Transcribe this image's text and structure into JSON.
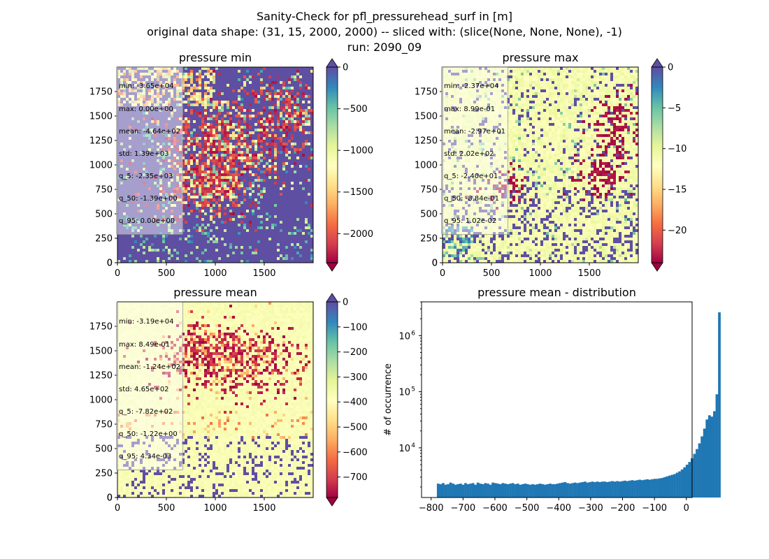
{
  "figure": {
    "title_lines": [
      "Sanity-Check for pfl_pressurehead_surf in [m]",
      "original data shape: (31, 15, 2000, 2000) -- sliced with: (slice(None, None, None), -1)",
      "run: 2090_09"
    ]
  },
  "colormap": {
    "name": "Spectral",
    "stops": [
      "#9e0142",
      "#d53e4f",
      "#f46d43",
      "#fdae61",
      "#fee08b",
      "#ffffbf",
      "#e6f598",
      "#abdda4",
      "#66c2a5",
      "#3288bd",
      "#5e4fa2"
    ]
  },
  "chart_data": [
    {
      "type": "heatmap",
      "title": "pressure min",
      "xlim": [
        0,
        2000
      ],
      "ylim": [
        0,
        2000
      ],
      "xticks": [
        0,
        500,
        1000,
        1500
      ],
      "yticks": [
        0,
        250,
        500,
        750,
        1000,
        1250,
        1500,
        1750
      ],
      "colorbar": {
        "vmin": -2350,
        "vmax": 0,
        "ticks": [
          0,
          -500,
          -1000,
          -1500,
          -2000
        ],
        "extend": "both"
      },
      "stats": [
        "min: -3.65e+04",
        "max: 0.00e+00",
        "mean: -4.64e+02",
        "std: 1.39e+03",
        "q_5: -2.35e+03",
        "q_50: -1.39e+00",
        "q_95: 0.00e+00"
      ]
    },
    {
      "type": "heatmap",
      "title": "pressure max",
      "xlim": [
        0,
        2000
      ],
      "ylim": [
        0,
        2000
      ],
      "xticks": [
        0,
        500,
        1000,
        1500
      ],
      "yticks": [
        0,
        250,
        500,
        750,
        1000,
        1250,
        1500,
        1750
      ],
      "colorbar": {
        "vmin": -24,
        "vmax": 0,
        "ticks": [
          0,
          -5,
          -10,
          -15,
          -20
        ],
        "extend": "both"
      },
      "stats": [
        "min: -2.37e+04",
        "max: 8.99e-01",
        "mean: -2.97e+01",
        "std: 2.02e+02",
        "q_5: -2.40e+01",
        "q_50: -8.84e-01",
        "q_95: 1.02e-02"
      ]
    },
    {
      "type": "heatmap",
      "title": "pressure mean",
      "xlim": [
        0,
        2000
      ],
      "ylim": [
        0,
        2000
      ],
      "xticks": [
        0,
        500,
        1000,
        1500
      ],
      "yticks": [
        0,
        250,
        500,
        750,
        1000,
        1250,
        1500,
        1750
      ],
      "colorbar": {
        "vmin": -782,
        "vmax": 0,
        "ticks": [
          0,
          -100,
          -200,
          -300,
          -400,
          -500,
          -600,
          -700
        ],
        "extend": "both"
      },
      "stats": [
        "min: -3.19e+04",
        "max: 8.49e-01",
        "mean: -1.24e+02",
        "std: 4.65e+02",
        "q_5: -7.82e+02",
        "q_50: -1.22e+00",
        "q_95: 4.34e-03"
      ]
    },
    {
      "type": "bar",
      "title": "pressure mean - distribution",
      "ylabel": "# of occurrence",
      "yscale": "log",
      "xlim": [
        -830,
        18
      ],
      "ylim": [
        1300,
        4000000
      ],
      "xticks": [
        -800,
        -700,
        -600,
        -500,
        -400,
        -300,
        -200,
        -100,
        0
      ],
      "xticklabels": [
        "−800",
        "−700",
        "−600",
        "−500",
        "−400",
        "−300",
        "−200",
        "−100",
        "0"
      ],
      "yticks": [
        10000,
        100000,
        1000000
      ],
      "yticklabels": [
        "10",
        "10",
        "10"
      ],
      "yticksup": [
        "4",
        "5",
        "6"
      ],
      "bin_width": 7.8,
      "bin_edges_start": -782,
      "counts": [
        2300,
        2250,
        2350,
        2200,
        2250,
        2400,
        2300,
        2200,
        2250,
        2300,
        2200,
        2350,
        2250,
        2300,
        2350,
        2200,
        2400,
        2300,
        2250,
        2350,
        2300,
        2200,
        2400,
        2350,
        2300,
        2250,
        2350,
        2300,
        2250,
        2300,
        2350,
        2250,
        2300,
        2200,
        2250,
        2300,
        2250,
        2200,
        2250,
        2200,
        2250,
        2300,
        2250,
        2200,
        2250,
        2300,
        2250,
        2250,
        2300,
        2350,
        2400,
        2450,
        2350,
        2300,
        2350,
        2400,
        2350,
        2400,
        2450,
        2500,
        2400,
        2450,
        2500,
        2450,
        2500,
        2450,
        2500,
        2500,
        2450,
        2500,
        2550,
        2500,
        2550,
        2500,
        2550,
        2600,
        2550,
        2600,
        2650,
        2600,
        2650,
        2700,
        2650,
        2700,
        2750,
        2700,
        2750,
        2800,
        2800,
        2850,
        2900,
        3000,
        3100,
        3200,
        3300,
        3400,
        3600,
        3800,
        4100,
        4500,
        5000,
        5600,
        6500,
        7800,
        9500,
        12000,
        16000,
        22000,
        32000,
        38000,
        36000,
        45000,
        90000,
        2600000
      ]
    }
  ]
}
